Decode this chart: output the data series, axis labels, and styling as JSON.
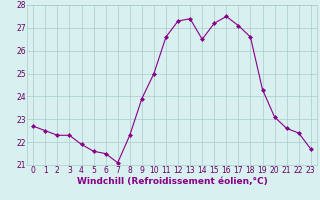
{
  "hours": [
    0,
    1,
    2,
    3,
    4,
    5,
    6,
    7,
    8,
    9,
    10,
    11,
    12,
    13,
    14,
    15,
    16,
    17,
    18,
    19,
    20,
    21,
    22,
    23
  ],
  "values": [
    22.7,
    22.5,
    22.3,
    22.3,
    21.9,
    21.6,
    21.5,
    21.1,
    22.3,
    23.9,
    25.0,
    26.6,
    27.3,
    27.4,
    26.5,
    27.2,
    27.5,
    27.1,
    26.6,
    24.3,
    23.1,
    22.6,
    22.4,
    21.7
  ],
  "line_color": "#880088",
  "marker": "D",
  "marker_size": 2,
  "bg_color": "#d8f0f0",
  "grid_color": "#aacccc",
  "xlabel": "Windchill (Refroidissement éolien,°C)",
  "ylim": [
    21,
    28
  ],
  "xlim_min": -0.5,
  "xlim_max": 23.5,
  "yticks": [
    21,
    22,
    23,
    24,
    25,
    26,
    27,
    28
  ],
  "xticks": [
    0,
    1,
    2,
    3,
    4,
    5,
    6,
    7,
    8,
    9,
    10,
    11,
    12,
    13,
    14,
    15,
    16,
    17,
    18,
    19,
    20,
    21,
    22,
    23
  ],
  "tick_label_fontsize": 5.5,
  "xlabel_fontsize": 6.5
}
